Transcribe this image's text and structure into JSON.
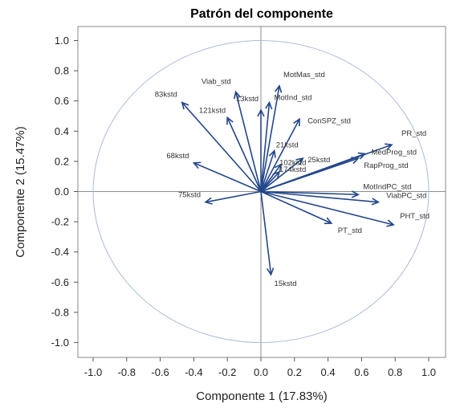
{
  "chart_data": {
    "type": "scatter",
    "title": "Patrón del componente",
    "xlabel": "Componente 1 (17.83%)",
    "ylabel": "Componente 2 (15.47%)",
    "xlim": [
      -1.0,
      1.0
    ],
    "ylim": [
      -1.0,
      1.0
    ],
    "xticks": [
      "-1.0",
      "-0.8",
      "-0.6",
      "-0.4",
      "-0.2",
      "0.0",
      "0.2",
      "0.4",
      "0.6",
      "0.8",
      "1.0"
    ],
    "yticks": [
      "1.0",
      "0.8",
      "0.6",
      "0.4",
      "0.2",
      "0.0",
      "-0.2",
      "-0.4",
      "-0.6",
      "-0.8",
      "-1.0"
    ],
    "grid": false,
    "unit_circle": true,
    "vectors": [
      {
        "name": "PR_std",
        "x": 0.78,
        "y": 0.31
      },
      {
        "name": "MedProg_std",
        "x": 0.62,
        "y": 0.25
      },
      {
        "name": "RapProg_std",
        "x": 0.58,
        "y": 0.22
      },
      {
        "name": "MotIndPC_std",
        "x": 0.58,
        "y": -0.02
      },
      {
        "name": "ViabPC_std",
        "x": 0.7,
        "y": -0.07
      },
      {
        "name": "PHT_std",
        "x": 0.79,
        "y": -0.22
      },
      {
        "name": "PT_std",
        "x": 0.42,
        "y": -0.21
      },
      {
        "name": "15kstd",
        "x": 0.06,
        "y": -0.55
      },
      {
        "name": "75kstd",
        "x": -0.33,
        "y": -0.07
      },
      {
        "name": "68kstd",
        "x": -0.4,
        "y": 0.19
      },
      {
        "name": "83kstd",
        "x": -0.47,
        "y": 0.59
      },
      {
        "name": "121kstd",
        "x": -0.2,
        "y": 0.49
      },
      {
        "name": "Viab_std",
        "x": -0.15,
        "y": 0.66
      },
      {
        "name": "13kstd",
        "x": 0.0,
        "y": 0.54
      },
      {
        "name": "MotMas_std",
        "x": 0.11,
        "y": 0.7
      },
      {
        "name": "MotInd_std",
        "x": 0.05,
        "y": 0.59
      },
      {
        "name": "ConSPZ_std",
        "x": 0.23,
        "y": 0.48
      },
      {
        "name": "21kstd",
        "x": 0.08,
        "y": 0.27
      },
      {
        "name": "25kstd",
        "x": 0.25,
        "y": 0.22
      },
      {
        "name": "102kstd",
        "x": 0.12,
        "y": 0.18
      },
      {
        "name": "174kstd",
        "x": 0.11,
        "y": 0.13
      }
    ]
  }
}
